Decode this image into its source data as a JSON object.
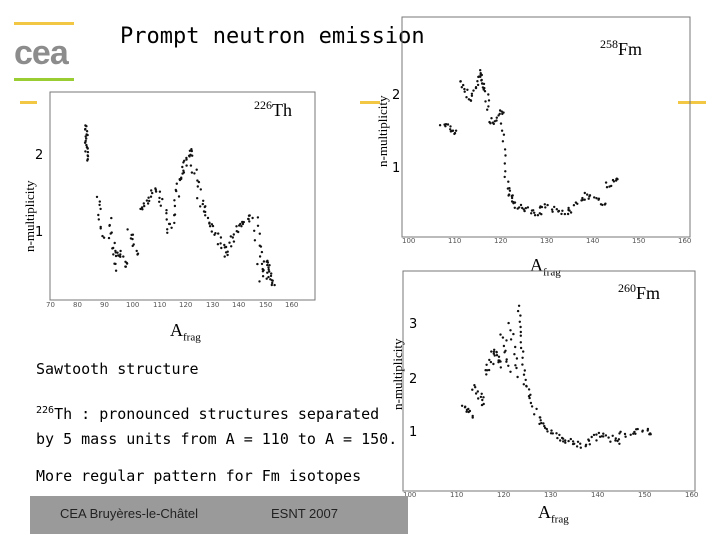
{
  "slide": {
    "title": "Prompt neutron emission",
    "footer_left": "CEA Bruyères-le-Châtel",
    "footer_mid": "ESNT 2007"
  },
  "logo": {
    "text": "cea"
  },
  "colors": {
    "accent_yellow": "#f2c744",
    "accent_green": "#9acd32",
    "logo_gray": "#888888"
  },
  "plot_th": {
    "iso_mass": "226",
    "iso_sym": "Th",
    "ylabel": "n-multiplicity",
    "xlabel_main": "A",
    "xlabel_sub": "frag",
    "yticks": [
      "2",
      "1"
    ],
    "xticks": [
      "70",
      "80",
      "90",
      "100",
      "110",
      "120",
      "130",
      "140",
      "150",
      "160"
    ]
  },
  "plot_fm258": {
    "iso_mass": "258",
    "iso_sym": "Fm",
    "ylabel": "n-multiplicity",
    "xlabel_main": "A",
    "xlabel_sub": "frag",
    "yticks": [
      "2",
      "1"
    ],
    "xticks": [
      "100",
      "110",
      "120",
      "130",
      "140",
      "150",
      "160"
    ]
  },
  "plot_fm260": {
    "iso_mass": "260",
    "iso_sym": "Fm",
    "ylabel": "n-multiplicity",
    "xlabel_main": "A",
    "xlabel_sub": "frag",
    "yticks": [
      "3",
      "2",
      "1"
    ],
    "xticks": [
      "100",
      "110",
      "120",
      "130",
      "140",
      "150",
      "160"
    ]
  },
  "text": {
    "sawtooth": "Sawtooth structure",
    "th_sup": "226",
    "th_line1": "Th : pronounced structures separated",
    "th_line2": "by 5 mass units from A = 110 to A = 150.",
    "fm_line": "More regular pattern for Fm isotopes"
  }
}
